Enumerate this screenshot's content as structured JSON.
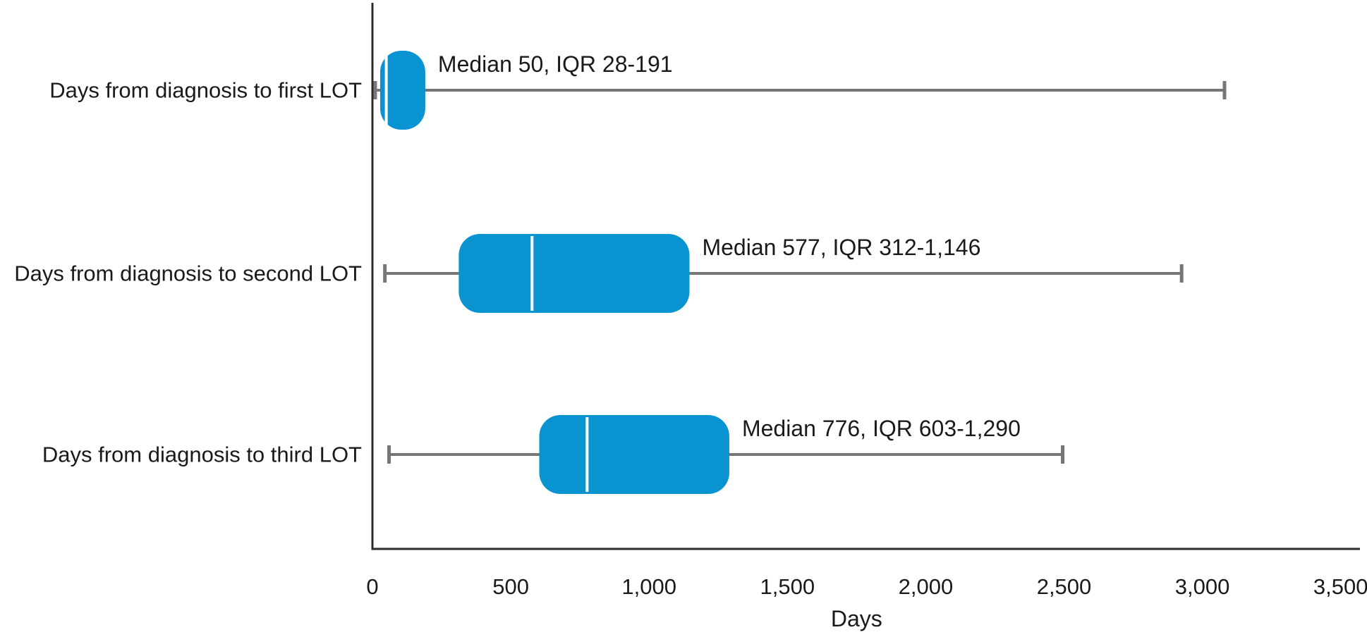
{
  "chart_data": {
    "type": "boxplot",
    "orientation": "horizontal",
    "title": "",
    "xlabel": "Days",
    "ylabel": "",
    "xlim": [
      0,
      3500
    ],
    "xticks": [
      0,
      500,
      1000,
      1500,
      2000,
      2500,
      3000,
      3500
    ],
    "xtick_labels": [
      "0",
      "500",
      "1,000",
      "1,500",
      "2,000",
      "2,500",
      "3,000",
      "3,500"
    ],
    "grid": false,
    "legend": null,
    "rows": [
      {
        "category": "Days from diagnosis to first LOT",
        "whisker_low": 10,
        "q1": 28,
        "median": 50,
        "q3": 191,
        "whisker_high": 3080,
        "annotation": "Median 50, IQR 28-191"
      },
      {
        "category": "Days from diagnosis to second LOT",
        "whisker_low": 45,
        "q1": 312,
        "median": 577,
        "q3": 1146,
        "whisker_high": 2925,
        "annotation": "Median 577, IQR 312-1,146"
      },
      {
        "category": "Days from diagnosis to third LOT",
        "whisker_low": 60,
        "q1": 603,
        "median": 776,
        "q3": 1290,
        "whisker_high": 2495,
        "annotation": "Median 776, IQR 603-1,290"
      }
    ],
    "colors": {
      "box_fill": "#0994D1",
      "median_line": "#FFFFFF",
      "whisker": "#767676",
      "axis": "#2B2B2B",
      "text": "#1A1A1A"
    }
  }
}
